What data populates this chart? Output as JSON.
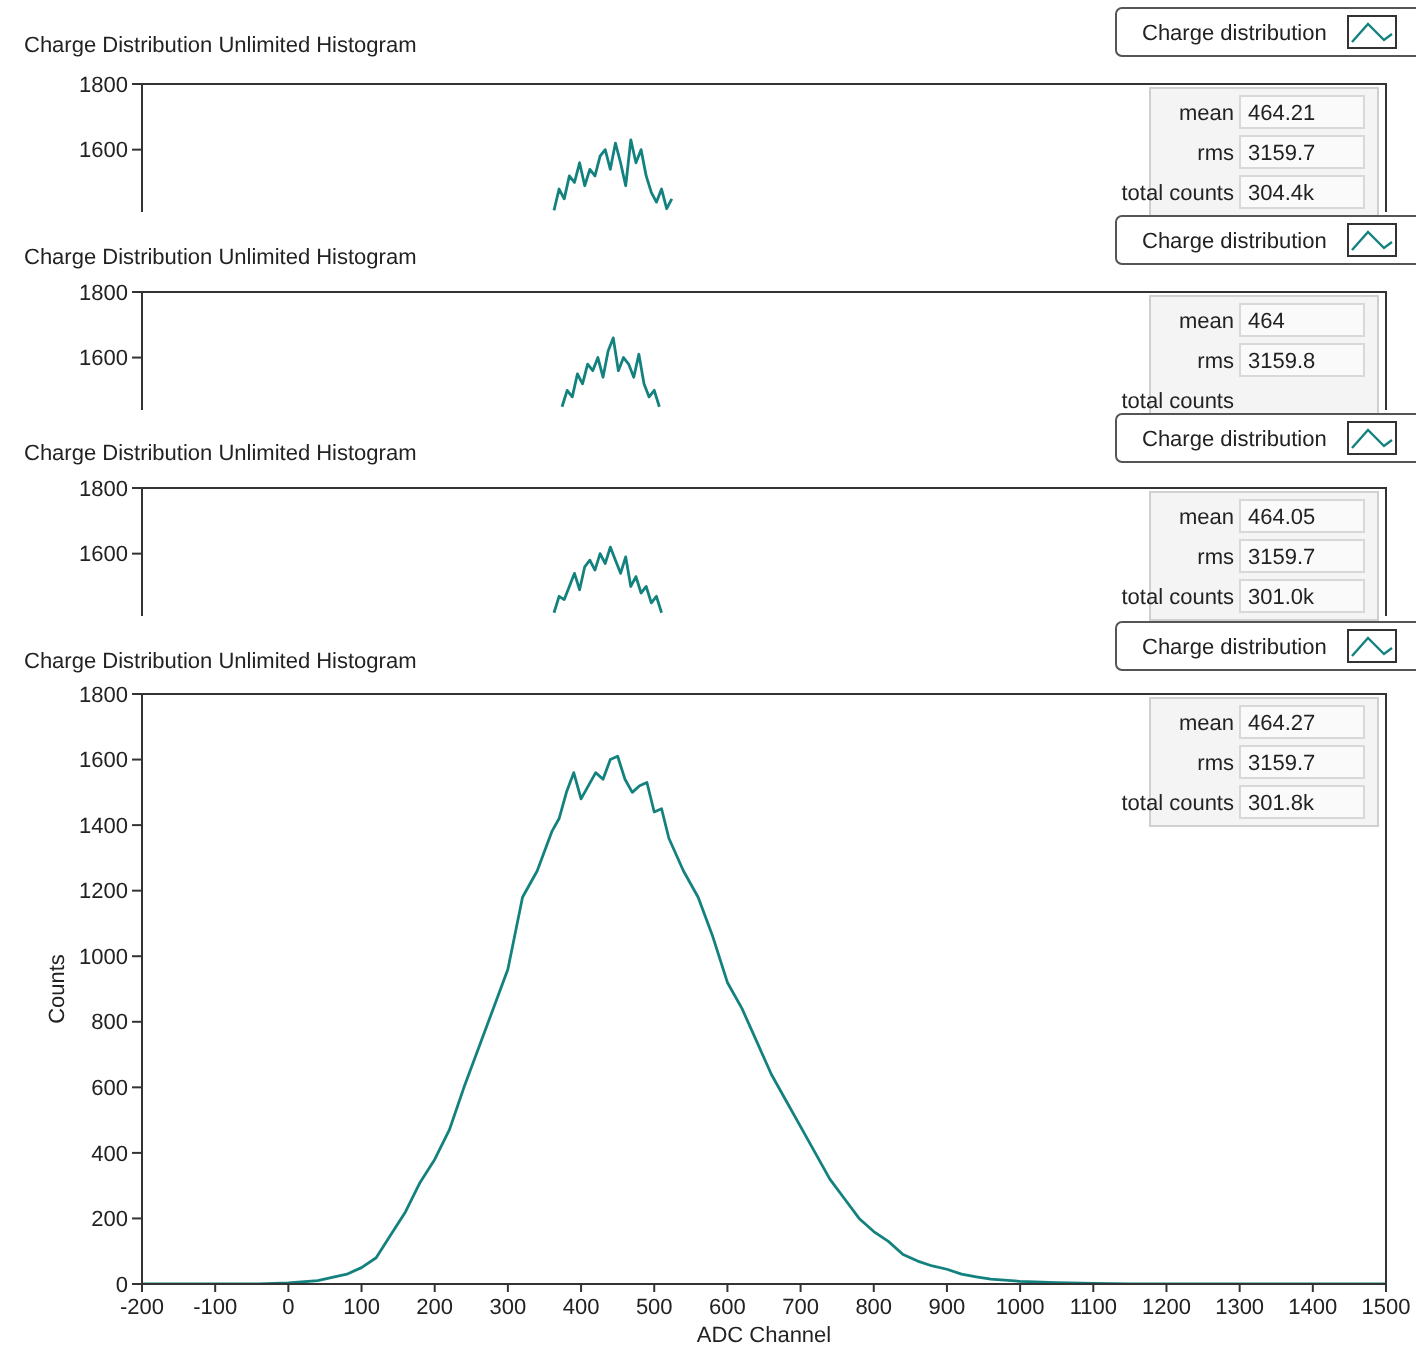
{
  "chart_data": [
    {
      "type": "line",
      "title": "Charge Distribution Unlimited Histogram",
      "xlim": [
        -200,
        1500
      ],
      "ylim": [
        1410,
        1800
      ],
      "yticks": [
        1600,
        1800
      ],
      "tick_labels": "y",
      "legend": "top right",
      "marker": "none",
      "line_style": "solid",
      "grid": false,
      "series": [
        {
          "name": "Charge distribution",
          "color": "#13827f",
          "x": [
            363,
            370,
            377,
            384,
            391,
            398,
            405,
            412,
            419,
            426,
            433,
            440,
            447,
            454,
            461,
            468,
            475,
            482,
            489,
            496,
            503,
            510,
            517,
            524
          ],
          "values": [
            1415,
            1480,
            1450,
            1520,
            1500,
            1560,
            1490,
            1540,
            1520,
            1580,
            1600,
            1540,
            1620,
            1560,
            1490,
            1630,
            1560,
            1600,
            1520,
            1470,
            1440,
            1480,
            1420,
            1450
          ]
        }
      ],
      "annotations": [
        "mean",
        "464.21",
        "rms",
        "3159.7",
        "total counts",
        "304.4k"
      ]
    },
    {
      "type": "line",
      "title": "Charge Distribution Unlimited Histogram",
      "xlim": [
        -200,
        1500
      ],
      "ylim": [
        1440,
        1800
      ],
      "yticks": [
        1600,
        1800
      ],
      "tick_labels": "y",
      "legend": "top right",
      "marker": "none",
      "line_style": "solid",
      "grid": false,
      "series": [
        {
          "name": "Charge distribution",
          "color": "#13827f",
          "x": [
            374,
            381,
            388,
            395,
            402,
            409,
            416,
            423,
            430,
            437,
            444,
            451,
            458,
            465,
            472,
            479,
            486,
            493,
            500,
            507
          ],
          "values": [
            1450,
            1500,
            1480,
            1550,
            1520,
            1580,
            1560,
            1600,
            1540,
            1620,
            1660,
            1560,
            1600,
            1580,
            1540,
            1610,
            1520,
            1480,
            1500,
            1450
          ]
        }
      ],
      "annotations": [
        "mean",
        "464",
        "rms",
        "3159.8",
        "total counts"
      ]
    },
    {
      "type": "line",
      "title": "Charge Distribution Unlimited Histogram",
      "xlim": [
        -200,
        1500
      ],
      "ylim": [
        1410,
        1800
      ],
      "yticks": [
        1600,
        1800
      ],
      "tick_labels": "y",
      "legend": "top right",
      "marker": "none",
      "line_style": "solid",
      "grid": false,
      "series": [
        {
          "name": "Charge distribution",
          "color": "#13827f",
          "x": [
            363,
            370,
            377,
            384,
            391,
            398,
            405,
            412,
            419,
            426,
            433,
            440,
            447,
            454,
            461,
            468,
            475,
            482,
            489,
            496,
            503,
            510
          ],
          "values": [
            1420,
            1470,
            1460,
            1500,
            1540,
            1490,
            1560,
            1580,
            1550,
            1600,
            1570,
            1620,
            1580,
            1540,
            1590,
            1500,
            1530,
            1480,
            1500,
            1450,
            1470,
            1420
          ]
        }
      ],
      "annotations": [
        "mean",
        "464.05",
        "rms",
        "3159.7",
        "total counts",
        "301.0k"
      ]
    },
    {
      "type": "line",
      "title": "Charge Distribution Unlimited Histogram",
      "xlabel": "ADC Channel",
      "ylabel": "Counts",
      "xlim": [
        -200,
        1500
      ],
      "ylim": [
        0,
        1800
      ],
      "xticks": [
        -200,
        -100,
        0,
        100,
        200,
        300,
        400,
        500,
        600,
        700,
        800,
        900,
        1000,
        1100,
        1200,
        1300,
        1400,
        1500
      ],
      "yticks": [
        0,
        200,
        400,
        600,
        800,
        1000,
        1200,
        1400,
        1600,
        1800
      ],
      "legend": "top right",
      "marker": "none",
      "line_style": "solid",
      "grid": false,
      "series": [
        {
          "name": "Charge distribution",
          "color": "#13827f",
          "x": [
            -200,
            -100,
            -40,
            0,
            40,
            80,
            100,
            120,
            140,
            160,
            180,
            200,
            220,
            240,
            260,
            280,
            300,
            320,
            340,
            360,
            370,
            380,
            390,
            400,
            420,
            430,
            440,
            450,
            460,
            470,
            480,
            490,
            500,
            510,
            520,
            540,
            560,
            580,
            600,
            620,
            640,
            660,
            680,
            700,
            720,
            740,
            760,
            780,
            800,
            820,
            840,
            860,
            880,
            900,
            920,
            940,
            960,
            1000,
            1050,
            1100,
            1150,
            1200,
            1300,
            1500
          ],
          "values": [
            0,
            0,
            0,
            3,
            10,
            30,
            50,
            80,
            150,
            220,
            310,
            380,
            470,
            600,
            720,
            840,
            960,
            1180,
            1260,
            1380,
            1420,
            1500,
            1560,
            1480,
            1560,
            1540,
            1600,
            1610,
            1540,
            1500,
            1520,
            1530,
            1440,
            1450,
            1360,
            1260,
            1180,
            1060,
            920,
            840,
            740,
            640,
            560,
            480,
            400,
            320,
            260,
            200,
            160,
            130,
            90,
            70,
            55,
            45,
            30,
            22,
            15,
            8,
            4,
            2,
            0,
            0,
            0,
            0
          ]
        }
      ],
      "annotations": [
        "mean",
        "464.27",
        "rms",
        "3159.7",
        "total counts",
        "301.8k"
      ]
    }
  ]
}
